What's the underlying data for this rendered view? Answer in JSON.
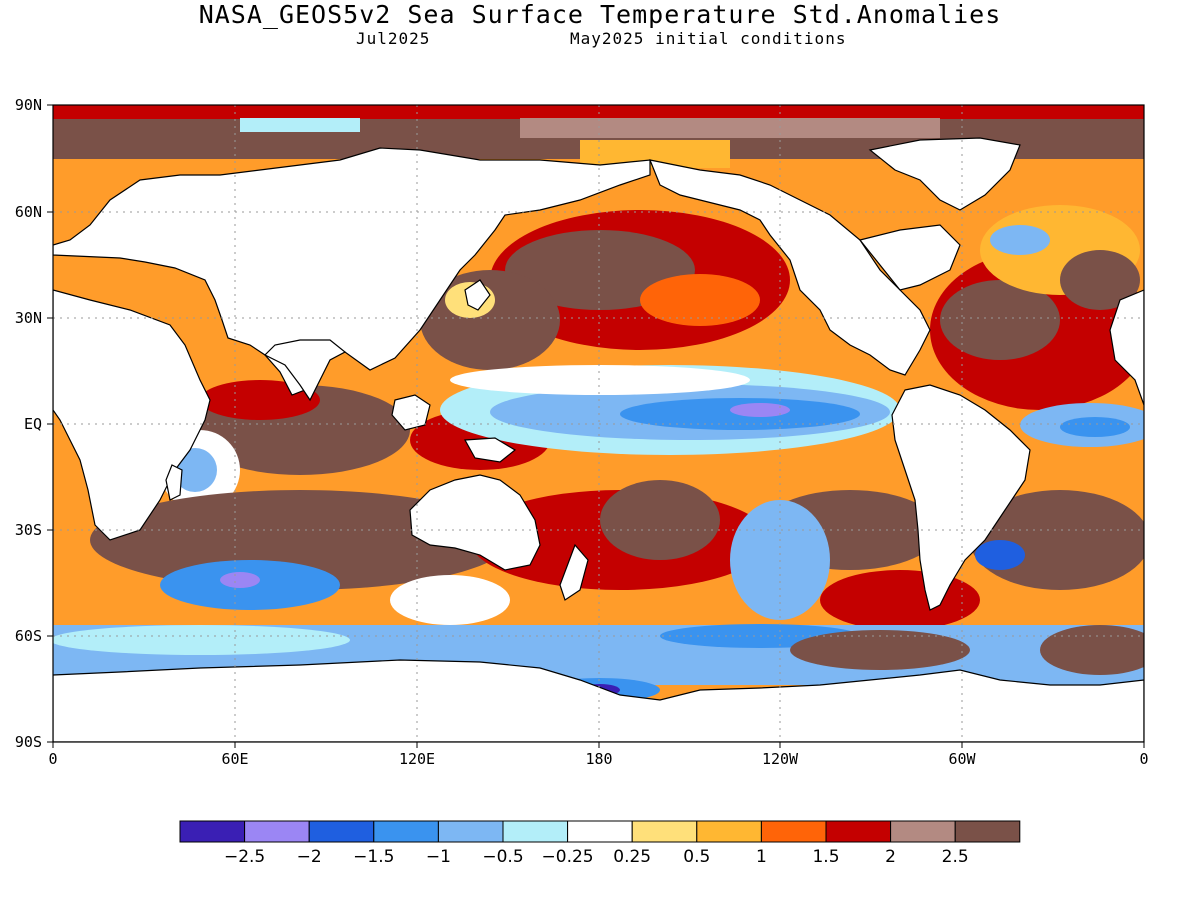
{
  "title": "NASA_GEOS5v2 Sea Surface Temperature Std.Anomalies",
  "subtitle_left": "Jul2025",
  "subtitle_right": "May2025 initial conditions",
  "map": {
    "lat_ticks": [
      "90N",
      "60N",
      "30N",
      "EQ",
      "30S",
      "60S",
      "90S"
    ],
    "lon_ticks": [
      "0",
      "60E",
      "120E",
      "180",
      "120W",
      "60W",
      "0"
    ],
    "land_color": "#ffffff",
    "gridline_style": "dotted",
    "continents": [
      "North America",
      "South America",
      "Europe",
      "Africa",
      "Asia",
      "Australia",
      "Antarctica",
      "Greenland"
    ]
  },
  "legend": {
    "colors": [
      "#3a1fb4",
      "#9b86f4",
      "#1f5fe0",
      "#3a93ef",
      "#7db7f3",
      "#b3eef9",
      "#ffffff",
      "#ffe07a",
      "#ffb732",
      "#ff6408",
      "#c40000",
      "#b38a82",
      "#7a5148"
    ],
    "labels": [
      "-2.5",
      "-2",
      "-1.5",
      "-1",
      "-0.5",
      "-0.25",
      "0.25",
      "0.5",
      "1",
      "1.5",
      "2",
      "2.5"
    ]
  }
}
